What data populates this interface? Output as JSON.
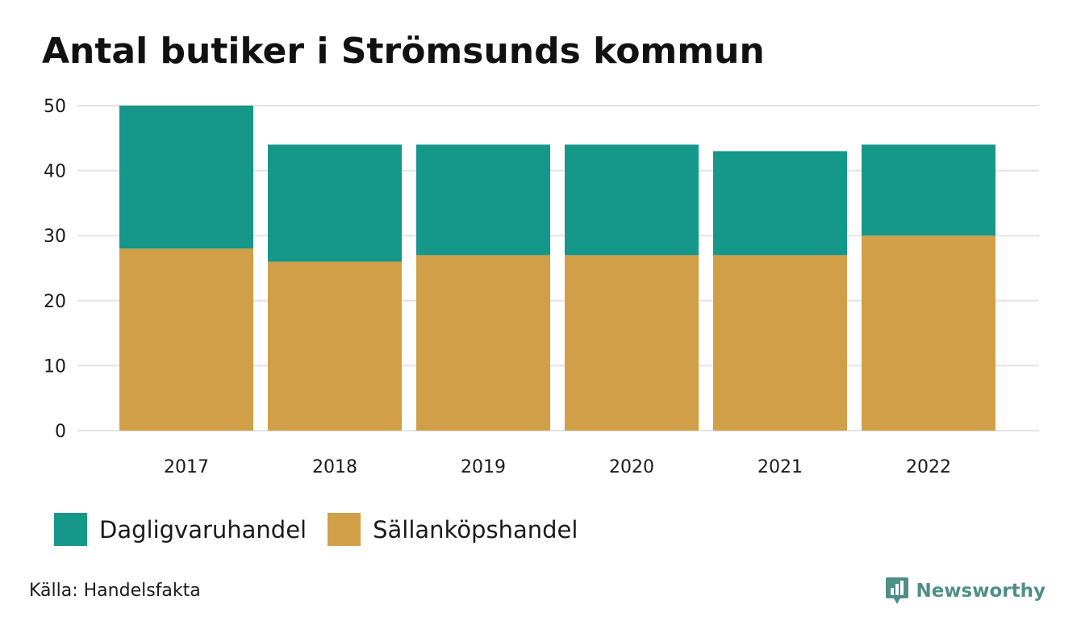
{
  "colors": {
    "dagligvaruhandel": "#15978a",
    "sallankopshandel": "#d19f47",
    "grid": "#e3e3e3",
    "brand": "#4e8f86"
  },
  "chart_data": {
    "type": "bar",
    "stacked": true,
    "title": "Antal butiker i Strömsunds kommun",
    "xlabel": "",
    "ylabel": "",
    "categories": [
      "2017",
      "2018",
      "2019",
      "2020",
      "2021",
      "2022"
    ],
    "series": [
      {
        "name": "Sällanköpshandel",
        "values": [
          28,
          26,
          27,
          27,
          27,
          30
        ]
      },
      {
        "name": "Dagligvaruhandel",
        "values": [
          22,
          18,
          17,
          17,
          16,
          14
        ]
      }
    ],
    "ylim": [
      0,
      50
    ],
    "yticks": [
      0,
      10,
      20,
      30,
      40,
      50
    ],
    "grid": true,
    "legend_position": "bottom-left"
  },
  "legend": {
    "items": [
      {
        "label": "Dagligvaruhandel",
        "color_key": "dagligvaruhandel"
      },
      {
        "label": "Sällanköpshandel",
        "color_key": "sallankopshandel"
      }
    ]
  },
  "footer": {
    "source": "Källa: Handelsfakta",
    "brand": "Newsworthy"
  }
}
